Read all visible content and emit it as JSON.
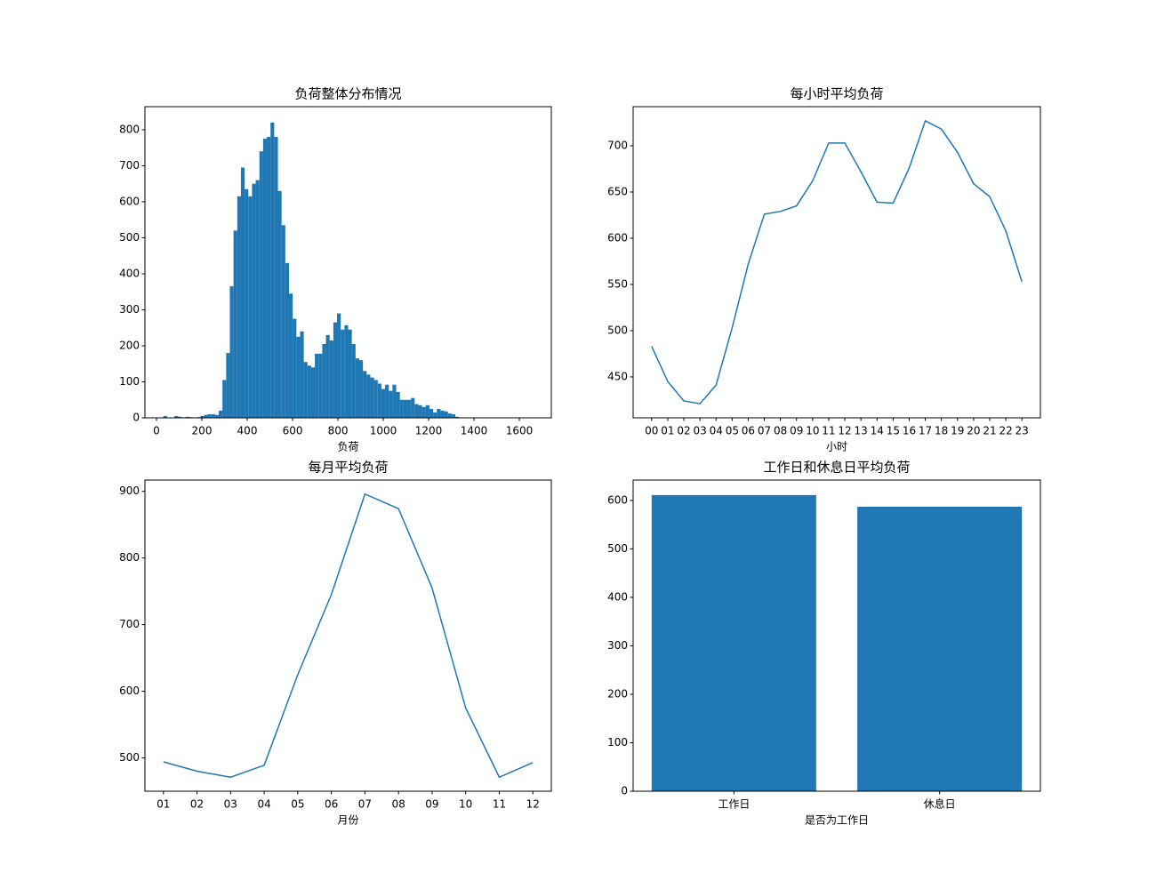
{
  "chart_data": [
    {
      "type": "histogram",
      "title": "负荷整体分布情况",
      "xlabel": "负荷",
      "color": "#1f77b4",
      "bins": [
        30,
        46.3,
        62.6,
        78.9,
        95.2,
        111.5,
        127.8,
        144.1,
        160.4,
        176.7,
        193,
        209.3,
        225.6,
        241.9,
        258.2,
        274.5,
        290.8,
        307.1,
        323.4,
        339.7,
        356,
        372.3,
        388.6,
        404.9,
        421.2,
        437.5,
        453.8,
        470.1,
        486.4,
        502.7,
        519,
        535.3,
        551.6,
        567.9,
        584.2,
        600.5,
        616.8,
        633.1,
        649.4,
        665.7,
        682,
        698.3,
        714.6,
        730.9,
        747.2,
        763.5,
        779.8,
        796.1,
        812.4,
        828.7,
        845,
        861.3,
        877.6,
        893.9,
        910.2,
        926.5,
        942.8,
        959.1,
        975.4,
        991.7,
        1008,
        1024.3,
        1040.6,
        1056.9,
        1073.2,
        1089.5,
        1105.8,
        1122.1,
        1138.4,
        1154.7,
        1171,
        1187.3,
        1203.6,
        1219.9,
        1236.2,
        1252.5,
        1268.8,
        1285.1,
        1301.4,
        1317.7,
        1334,
        1350.3,
        1366.6,
        1382.9,
        1399.2,
        1415.5,
        1431.8,
        1448.1,
        1464.4,
        1480.7,
        1497,
        1513.3,
        1529.6,
        1545.9,
        1562.2,
        1578.5,
        1594.8,
        1611.1,
        1627.4,
        1643.7,
        1660
      ],
      "values": [
        5,
        0,
        0,
        5,
        3,
        0,
        3,
        2,
        0,
        2,
        5,
        8,
        10,
        10,
        8,
        20,
        105,
        180,
        365,
        520,
        615,
        695,
        635,
        615,
        650,
        660,
        740,
        775,
        780,
        820,
        780,
        630,
        535,
        430,
        345,
        275,
        225,
        240,
        155,
        145,
        140,
        178,
        178,
        205,
        230,
        215,
        265,
        290,
        245,
        257,
        245,
        205,
        165,
        160,
        130,
        120,
        112,
        105,
        95,
        80,
        92,
        75,
        92,
        72,
        50,
        50,
        50,
        55,
        38,
        35,
        30,
        35,
        25,
        15,
        25,
        20,
        18,
        12,
        10,
        3,
        0,
        0,
        0,
        0,
        0,
        1,
        0,
        0,
        0,
        0,
        0,
        0,
        0,
        0,
        0,
        0,
        0,
        0,
        0,
        1
      ],
      "xlim": [
        -51,
        1741
      ],
      "xticks": [
        0,
        200,
        400,
        600,
        800,
        1000,
        1200,
        1400,
        1600
      ],
      "ylim": [
        0,
        864
      ],
      "yticks": [
        0,
        100,
        200,
        300,
        400,
        500,
        600,
        700,
        800
      ]
    },
    {
      "type": "line",
      "title": "每小时平均负荷",
      "xlabel": "小时",
      "color": "#1f77b4",
      "categories": [
        "00",
        "01",
        "02",
        "03",
        "04",
        "05",
        "06",
        "07",
        "08",
        "09",
        "10",
        "11",
        "12",
        "13",
        "14",
        "15",
        "16",
        "17",
        "18",
        "19",
        "20",
        "21",
        "22",
        "23"
      ],
      "values": [
        483,
        445,
        424,
        421,
        441,
        503,
        572,
        626,
        629,
        635,
        662,
        703,
        703,
        672,
        639,
        638,
        676,
        727,
        718,
        693,
        659,
        645,
        608,
        553
      ],
      "ylim": [
        405.7,
        742.3
      ],
      "yticks": [
        450,
        500,
        550,
        600,
        650,
        700
      ]
    },
    {
      "type": "line",
      "title": "每月平均负荷",
      "xlabel": "月份",
      "color": "#1f77b4",
      "categories": [
        "01",
        "02",
        "03",
        "04",
        "05",
        "06",
        "07",
        "08",
        "09",
        "10",
        "11",
        "12"
      ],
      "values": [
        494,
        480,
        471,
        489,
        625,
        745,
        896,
        874,
        755,
        575,
        471,
        493
      ],
      "ylim": [
        450,
        917
      ],
      "yticks": [
        500,
        600,
        700,
        800,
        900
      ]
    },
    {
      "type": "bar",
      "title": "工作日和休息日平均负荷",
      "xlabel": "是否为工作日",
      "color": "#1f77b4",
      "categories": [
        "工作日",
        "休息日"
      ],
      "values": [
        611,
        587
      ],
      "ylim": [
        0,
        642
      ],
      "yticks": [
        0,
        100,
        200,
        300,
        400,
        500,
        600
      ]
    }
  ]
}
